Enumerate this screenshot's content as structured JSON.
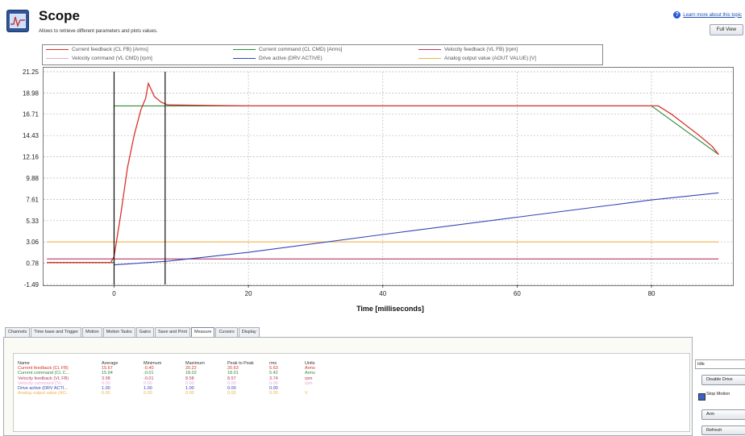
{
  "header": {
    "title": "Scope",
    "subtitle": "Allows to retrieve different parameters and plots values.",
    "learn_more": "Learn more about this topic",
    "full_view_label": "Full View"
  },
  "legend": [
    {
      "label": "Current feedback (CL FB) [Arms]",
      "color": "#d9332b"
    },
    {
      "label": "Current command (CL CMD) [Arms]",
      "color": "#2e8b3d"
    },
    {
      "label": "Velocity feedback (VL FB) [rpm]",
      "color": "#b33a66"
    },
    {
      "label": "Velocity command (VL CMD) [rpm]",
      "color": "#e8a8d0"
    },
    {
      "label": "Drive active (DRV ACTIVE)",
      "color": "#3346b8"
    },
    {
      "label": "Analog output value (AOUT VALUE) [V]",
      "color": "#f0b34a"
    }
  ],
  "chart_data": {
    "type": "line",
    "xlabel": "Time [milliseconds]",
    "xlim": [
      -10.5,
      92
    ],
    "ylim": [
      -1.49,
      21.25
    ],
    "x_ticks": [
      "0",
      "20",
      "40",
      "60",
      "80"
    ],
    "y_ticks": [
      "21.25",
      "18.98",
      "16.71",
      "14.43",
      "12.16",
      "9.88",
      "7.61",
      "5.33",
      "3.06",
      "0.78",
      "-1.49"
    ],
    "cursors_x": [
      0,
      7.6
    ],
    "series": [
      {
        "name": "Current feedback (CL FB) [Arms]",
        "color": "#d9332b",
        "points": [
          [
            -10,
            0.85
          ],
          [
            -0.5,
            0.85
          ],
          [
            0,
            1.5
          ],
          [
            1,
            6
          ],
          [
            2,
            11
          ],
          [
            3,
            14.5
          ],
          [
            4,
            17.2
          ],
          [
            4.7,
            18.4
          ],
          [
            5.1,
            20.0
          ],
          [
            6,
            18.6
          ],
          [
            7,
            18.0
          ],
          [
            8,
            17.7
          ],
          [
            20,
            17.6
          ],
          [
            40,
            17.6
          ],
          [
            60,
            17.6
          ],
          [
            79,
            17.6
          ],
          [
            81,
            17.6
          ],
          [
            83,
            16.7
          ],
          [
            85,
            15.6
          ],
          [
            87,
            14.5
          ],
          [
            89,
            13.3
          ],
          [
            90,
            12.4
          ]
        ]
      },
      {
        "name": "Current command (CL CMD) [Arms]",
        "color": "#2e8b3d",
        "points": [
          [
            -10,
            0.85
          ],
          [
            0,
            0.85
          ],
          [
            0,
            17.6
          ],
          [
            80,
            17.6
          ],
          [
            90,
            12.4
          ]
        ]
      },
      {
        "name": "Velocity feedback (VL FB) [rpm]",
        "color": "#3346b8",
        "points": [
          [
            0,
            0.6
          ],
          [
            8,
            1.0
          ],
          [
            20,
            1.95
          ],
          [
            40,
            3.85
          ],
          [
            60,
            5.7
          ],
          [
            80,
            7.55
          ],
          [
            90,
            8.3
          ]
        ]
      },
      {
        "name": "Drive active (DRV ACTIVE)",
        "color": "#b33a66",
        "points": [
          [
            -10,
            1.24
          ],
          [
            90,
            1.24
          ]
        ]
      },
      {
        "name": "Analog output value (AOUT VALUE) [V]",
        "color": "#f0b34a",
        "points": [
          [
            -10,
            3.06
          ],
          [
            90,
            3.06
          ]
        ]
      }
    ]
  },
  "tabs": [
    "Channels",
    "Time base and Trigger",
    "Motion",
    "Motion Tasks",
    "Gains",
    "Save and Print",
    "Measure",
    "Cursors",
    "Display"
  ],
  "active_tab": "Measure",
  "measure": {
    "headers": [
      "Name",
      "Average",
      "Minimum",
      "Maximum",
      "Peak to Peak",
      "rms",
      "Units"
    ],
    "rows": [
      {
        "color": "#d9332b",
        "cells": [
          "Current feedback (CL FB)",
          "15.67",
          "-0.40",
          "20.22",
          "20.63",
          "5.63",
          "Arms"
        ]
      },
      {
        "color": "#2e8b3d",
        "cells": [
          "Current command (CL C...",
          "15.94",
          "-0.01",
          "18.02",
          "18.01",
          "5.42",
          "Arms"
        ]
      },
      {
        "color": "#b33a66",
        "cells": [
          "Velocity feedback (VL FB)",
          "3.98",
          "-0.01",
          "8.58",
          "8.57",
          "3.74",
          "rpm"
        ]
      },
      {
        "color": "#e8a8d0",
        "cells": [
          "Velocity command (VL ...",
          "0.00",
          "0.00",
          "0.00",
          "0.00",
          "0.00",
          "rpm"
        ]
      },
      {
        "color": "#3346b8",
        "cells": [
          "Drive active (DRV ACTI...",
          "1.00",
          "1.00",
          "1.00",
          "0.00",
          "0.00",
          ""
        ]
      },
      {
        "color": "#f0b34a",
        "cells": [
          "Analog output value (AO...",
          "0.00",
          "0.00",
          "0.00",
          "0.00",
          "0.00",
          "V"
        ]
      }
    ]
  },
  "controls": {
    "state": "Idle",
    "disable_drive": "Disable Drive",
    "stop_label": "Stop Motion",
    "arm": "Arm",
    "refresh": "Refresh"
  }
}
